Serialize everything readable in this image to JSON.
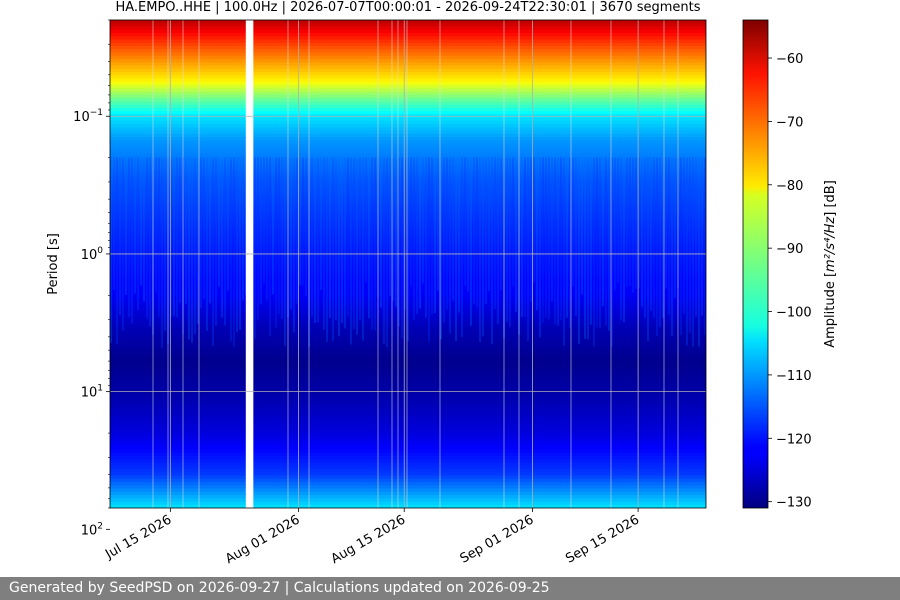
{
  "chart_data": {
    "type": "heatmap",
    "title": "HA.EMPO..HHE | 100.0Hz | 2026-07-07T00:00:01 - 2026-09-24T22:30:01 | 3670 segments",
    "ylabel": "Period [s]",
    "yscale": "log",
    "yaxis_inverted": true,
    "ylim": [
      0.02,
      70
    ],
    "y_ticks": [
      {
        "value": 0.1,
        "base": "10",
        "exp": "−1"
      },
      {
        "value": 1,
        "base": "10",
        "exp": "0"
      },
      {
        "value": 10,
        "base": "10",
        "exp": "1"
      },
      {
        "value": 100,
        "base": "10",
        "exp": "2"
      }
    ],
    "xlim": [
      "2026-07-07",
      "2026-09-24"
    ],
    "x_ticks": [
      {
        "value": "2026-07-15",
        "label": "Jul 15 2026"
      },
      {
        "value": "2026-08-01",
        "label": "Aug 01 2026"
      },
      {
        "value": "2026-08-15",
        "label": "Aug 15 2026"
      },
      {
        "value": "2026-09-01",
        "label": "Sep 01 2026"
      },
      {
        "value": "2026-09-15",
        "label": "Sep 15 2026"
      }
    ],
    "grid": true,
    "colormap": "jet",
    "colorbar": {
      "label_text": "Amplitude [",
      "label_math": "m²/s⁴/Hz",
      "label_close": "] [dB]",
      "vmin": -131,
      "vmax": -54,
      "ticks": [
        {
          "value": -60,
          "label": "−60"
        },
        {
          "value": -70,
          "label": "−70"
        },
        {
          "value": -80,
          "label": "−80"
        },
        {
          "value": -90,
          "label": "−90"
        },
        {
          "value": -100,
          "label": "−100"
        },
        {
          "value": -110,
          "label": "−110"
        },
        {
          "value": -120,
          "label": "−120"
        },
        {
          "value": -130,
          "label": "−130"
        }
      ]
    },
    "data_gaps": [
      {
        "start": "2026-07-25",
        "end": "2026-07-26"
      }
    ],
    "amplitude_profile_db": [
      {
        "period": 0.02,
        "db": -58
      },
      {
        "period": 0.025,
        "db": -64
      },
      {
        "period": 0.032,
        "db": -70
      },
      {
        "period": 0.04,
        "db": -75
      },
      {
        "period": 0.055,
        "db": -82
      },
      {
        "period": 0.075,
        "db": -94
      },
      {
        "period": 0.1,
        "db": -104
      },
      {
        "period": 0.15,
        "db": -110
      },
      {
        "period": 0.3,
        "db": -115
      },
      {
        "period": 0.6,
        "db": -118
      },
      {
        "period": 1.0,
        "db": -120
      },
      {
        "period": 2.0,
        "db": -122
      },
      {
        "period": 3.5,
        "db": -127
      },
      {
        "period": 6.0,
        "db": -130
      },
      {
        "period": 10,
        "db": -128
      },
      {
        "period": 20,
        "db": -124
      },
      {
        "period": 40,
        "db": -117
      },
      {
        "period": 70,
        "db": -104
      }
    ]
  },
  "footer": {
    "text": "Generated by SeedPSD on 2026-09-27 | Calculations updated on 2026-09-25"
  }
}
